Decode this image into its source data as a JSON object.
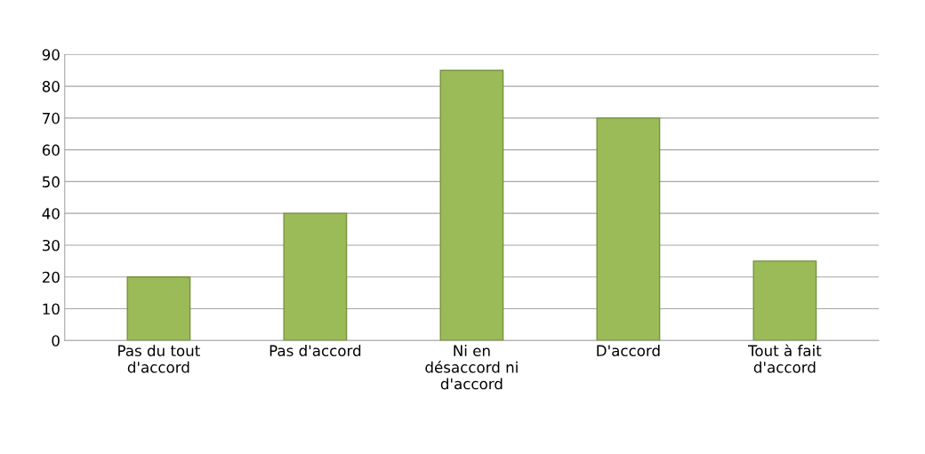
{
  "chart_data": {
    "type": "bar",
    "categories": [
      "Pas du tout d'accord",
      "Pas d'accord",
      "Ni en désaccord ni d'accord",
      "D'accord",
      "Tout à fait d'accord"
    ],
    "values": [
      20,
      40,
      85,
      70,
      25
    ],
    "color": "#9bbb59",
    "ylim": [
      0,
      90
    ],
    "yticks": [
      0,
      10,
      20,
      30,
      40,
      50,
      60,
      70,
      80,
      90
    ],
    "grid": "y"
  }
}
